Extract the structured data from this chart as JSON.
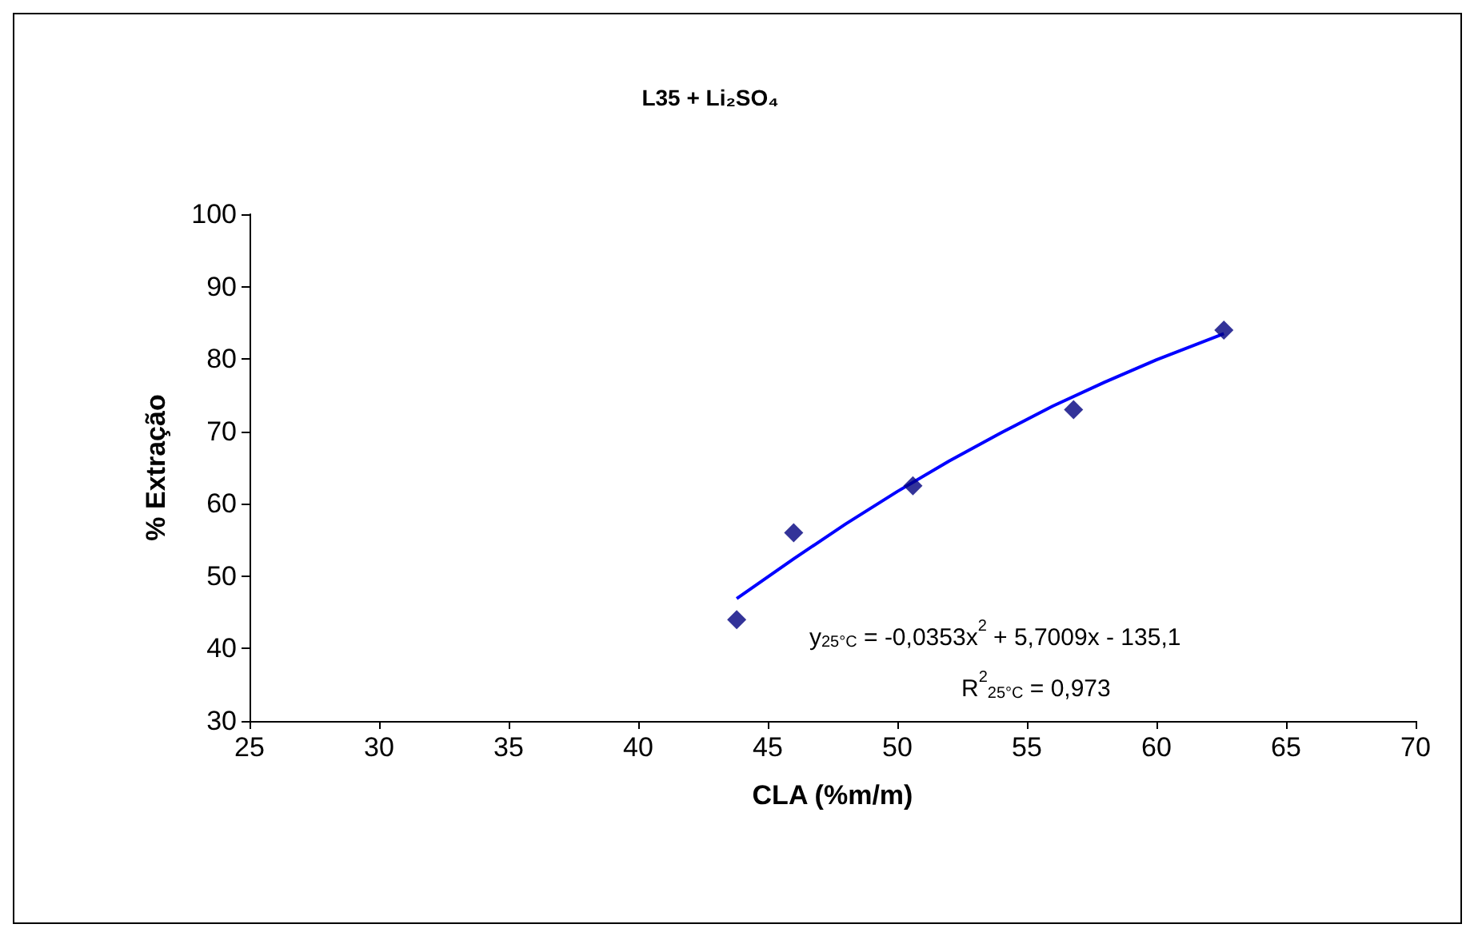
{
  "chart_data": {
    "type": "scatter",
    "title": "L35 + Li₂SO₄",
    "xlabel": "CLA (%m/m)",
    "ylabel": "% Extração",
    "xlim": [
      25,
      70
    ],
    "xticks": [
      25,
      30,
      35,
      40,
      45,
      50,
      55,
      60,
      65,
      70
    ],
    "ylim": [
      30,
      100
    ],
    "yticks": [
      30,
      40,
      50,
      60,
      70,
      80,
      90,
      100
    ],
    "grid": false,
    "marker": "diamond",
    "series": [
      {
        "color": "#000080",
        "x": [
          43.8,
          46,
          50.6,
          56.8,
          62.6
        ],
        "values": [
          44,
          56,
          62.5,
          73,
          84
        ]
      },
      {
        "type": "line",
        "color": "#0000ff",
        "marker": "none",
        "line_style": "solid",
        "x": [
          43.8,
          46,
          48,
          50,
          52,
          54,
          56,
          58,
          60,
          62.6
        ],
        "values": [
          46.9,
          52.4,
          57.2,
          61.7,
          65.9,
          69.8,
          73.5,
          76.8,
          79.9,
          83.5
        ]
      }
    ],
    "annotations": [
      "y$_{25°C}$ = -0,0353x$^{2}$ + 5,7009x - 135,1",
      "R$^{2}$$_{25°C}$ = 0,973"
    ]
  }
}
